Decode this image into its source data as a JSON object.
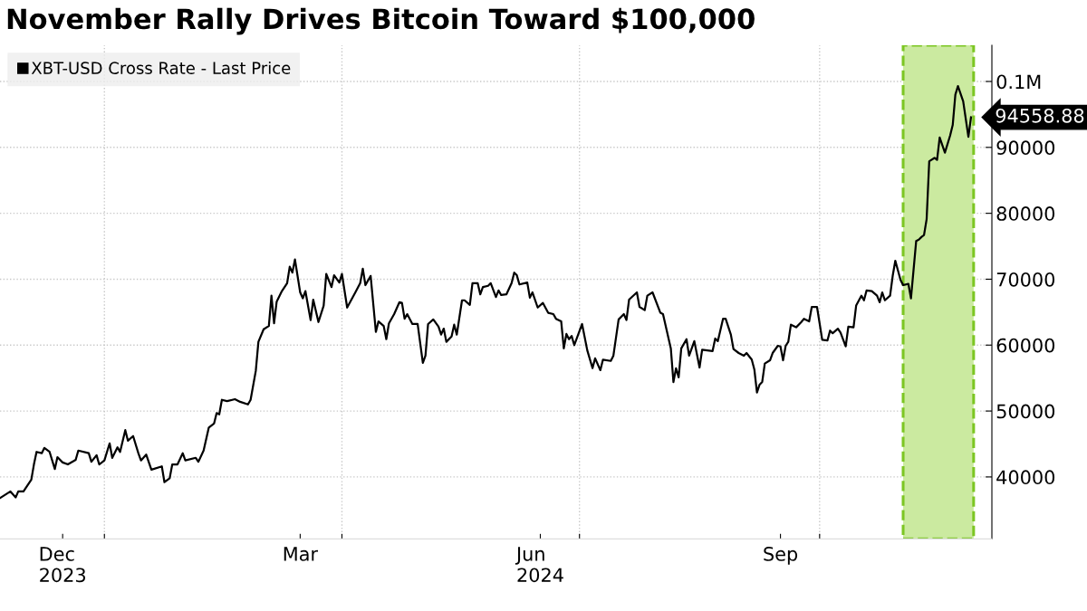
{
  "chart_data": {
    "type": "line",
    "title": "November Rally Drives Bitcoin Toward $100,000",
    "x": [
      "2023-11-22",
      "2023-11-26",
      "2023-11-28",
      "2023-11-29",
      "2023-12-01",
      "2023-12-04",
      "2023-12-05",
      "2023-12-06",
      "2023-12-08",
      "2023-12-09",
      "2023-12-11",
      "2023-12-13",
      "2023-12-14",
      "2023-12-16",
      "2023-12-18",
      "2023-12-21",
      "2023-12-22",
      "2023-12-26",
      "2023-12-27",
      "2023-12-29",
      "2023-12-30",
      "2024-01-01",
      "2024-01-03",
      "2024-01-04",
      "2024-01-06",
      "2024-01-07",
      "2024-01-09",
      "2024-01-10",
      "2024-01-12",
      "2024-01-14",
      "2024-01-15",
      "2024-01-17",
      "2024-01-19",
      "2024-01-23",
      "2024-01-24",
      "2024-01-26",
      "2024-01-27",
      "2024-01-29",
      "2024-01-31",
      "2024-02-01",
      "2024-02-05",
      "2024-02-06",
      "2024-02-08",
      "2024-02-10",
      "2024-02-12",
      "2024-02-13",
      "2024-02-14",
      "2024-02-15",
      "2024-02-17",
      "2024-02-20",
      "2024-02-22",
      "2024-02-25",
      "2024-02-26",
      "2024-02-28",
      "2024-02-29",
      "2024-03-02",
      "2024-03-04",
      "2024-03-05",
      "2024-03-06",
      "2024-03-07",
      "2024-03-09",
      "2024-03-11",
      "2024-03-12",
      "2024-03-13",
      "2024-03-14",
      "2024-03-16",
      "2024-03-17",
      "2024-03-18",
      "2024-03-20",
      "2024-03-21",
      "2024-03-23",
      "2024-03-25",
      "2024-03-26",
      "2024-03-28",
      "2024-03-29",
      "2024-03-31",
      "2024-04-01",
      "2024-04-03",
      "2024-04-06",
      "2024-04-08",
      "2024-04-09",
      "2024-04-10",
      "2024-04-12",
      "2024-04-14",
      "2024-04-15",
      "2024-04-17",
      "2024-04-18",
      "2024-04-19",
      "2024-04-21",
      "2024-04-23",
      "2024-04-24",
      "2024-04-25",
      "2024-04-26",
      "2024-04-28",
      "2024-04-30",
      "2024-05-02",
      "2024-05-03",
      "2024-05-04",
      "2024-05-06",
      "2024-05-08",
      "2024-05-09",
      "2024-05-10",
      "2024-05-11",
      "2024-05-13",
      "2024-05-14",
      "2024-05-15",
      "2024-05-17",
      "2024-05-18",
      "2024-05-20",
      "2024-05-21",
      "2024-05-23",
      "2024-05-24",
      "2024-05-25",
      "2024-05-27",
      "2024-05-28",
      "2024-05-30",
      "2024-05-31",
      "2024-06-01",
      "2024-06-03",
      "2024-06-05",
      "2024-06-06",
      "2024-06-07",
      "2024-06-08",
      "2024-06-11",
      "2024-06-12",
      "2024-06-13",
      "2024-06-15",
      "2024-06-17",
      "2024-06-19",
      "2024-06-21",
      "2024-06-22",
      "2024-06-24",
      "2024-06-25",
      "2024-06-26",
      "2024-06-27",
      "2024-06-28",
      "2024-06-29",
      "2024-07-02",
      "2024-07-04",
      "2024-07-06",
      "2024-07-07",
      "2024-07-09",
      "2024-07-10",
      "2024-07-13",
      "2024-07-14",
      "2024-07-16",
      "2024-07-18",
      "2024-07-19",
      "2024-07-20",
      "2024-07-23",
      "2024-07-24",
      "2024-07-26",
      "2024-07-27",
      "2024-07-29",
      "2024-08-01",
      "2024-08-02",
      "2024-08-05",
      "2024-08-06",
      "2024-08-07",
      "2024-08-08",
      "2024-08-09",
      "2024-08-11",
      "2024-08-12",
      "2024-08-14",
      "2024-08-16",
      "2024-08-17",
      "2024-08-21",
      "2024-08-22",
      "2024-08-23",
      "2024-08-25",
      "2024-08-26",
      "2024-08-28",
      "2024-08-29",
      "2024-08-31",
      "2024-09-02",
      "2024-09-03",
      "2024-09-05",
      "2024-09-06",
      "2024-09-07",
      "2024-09-08",
      "2024-09-09",
      "2024-09-10",
      "2024-09-12",
      "2024-09-13",
      "2024-09-15",
      "2024-09-16",
      "2024-09-17",
      "2024-09-18",
      "2024-09-19",
      "2024-09-20",
      "2024-09-22",
      "2024-09-24",
      "2024-09-25",
      "2024-09-27",
      "2024-09-28",
      "2024-09-30",
      "2024-10-02",
      "2024-10-04",
      "2024-10-05",
      "2024-10-06",
      "2024-10-08",
      "2024-10-09",
      "2024-10-11",
      "2024-10-12",
      "2024-10-14",
      "2024-10-15",
      "2024-10-17",
      "2024-10-18",
      "2024-10-19",
      "2024-10-21",
      "2024-10-23",
      "2024-10-24",
      "2024-10-25",
      "2024-10-26",
      "2024-10-28",
      "2024-10-29",
      "2024-10-30",
      "2024-11-01",
      "2024-11-02",
      "2024-11-04",
      "2024-11-05",
      "2024-11-07",
      "2024-11-08",
      "2024-11-09",
      "2024-11-10",
      "2024-11-11",
      "2024-11-12",
      "2024-11-14",
      "2024-11-15",
      "2024-11-16",
      "2024-11-18",
      "2024-11-20",
      "2024-11-21",
      "2024-11-22",
      "2024-11-23",
      "2024-11-25",
      "2024-11-27",
      "2024-11-28"
    ],
    "series": [
      {
        "name": "XBT-USD Cross Rate - Last Price",
        "color": "#000000",
        "values": [
          36800,
          37800,
          36900,
          37800,
          37800,
          39600,
          41900,
          43800,
          43600,
          44400,
          43800,
          41200,
          43000,
          42200,
          41900,
          42600,
          44000,
          43600,
          42300,
          43300,
          41900,
          42500,
          45100,
          42900,
          44500,
          43800,
          47100,
          45500,
          46200,
          43600,
          42500,
          43400,
          41100,
          41600,
          39200,
          39800,
          41900,
          41900,
          43600,
          42500,
          42900,
          42300,
          44000,
          47500,
          48100,
          49700,
          49500,
          51700,
          51500,
          51800,
          51400,
          51000,
          51700,
          56100,
          60500,
          62400,
          62900,
          67500,
          63300,
          66600,
          68200,
          69400,
          71900,
          71000,
          73000,
          68000,
          67100,
          68200,
          63800,
          66900,
          63500,
          66000,
          70800,
          68800,
          70600,
          69500,
          70800,
          65700,
          67900,
          69400,
          71600,
          69100,
          70500,
          62000,
          63600,
          62900,
          60900,
          63300,
          64700,
          66500,
          66400,
          64000,
          64700,
          63200,
          63200,
          57300,
          58400,
          63200,
          63900,
          62800,
          61600,
          62500,
          60500,
          61300,
          63100,
          61600,
          66800,
          66800,
          66100,
          69400,
          69400,
          67700,
          68800,
          69000,
          69400,
          67300,
          68300,
          67600,
          67700,
          69400,
          71000,
          70600,
          69200,
          69500,
          67200,
          68000,
          65700,
          66400,
          64900,
          64700,
          64000,
          63600,
          59500,
          61700,
          60900,
          61400,
          60000,
          63200,
          59200,
          56500,
          58000,
          56200,
          57800,
          57600,
          58400,
          63900,
          64700,
          63800,
          66900,
          68000,
          65800,
          65300,
          67500,
          68000,
          64900,
          64700,
          59500,
          54400,
          56500,
          55100,
          59500,
          60900,
          58400,
          60600,
          56600,
          59300,
          59100,
          61000,
          60600,
          64000,
          64000,
          61600,
          59400,
          58800,
          58400,
          58800,
          57800,
          56300,
          52800,
          54000,
          54400,
          57200,
          57700,
          58800,
          59900,
          59800,
          57700,
          59900,
          60500,
          63100,
          62700,
          63500,
          64000,
          63600,
          65800,
          65800,
          60800,
          60700,
          62200,
          61800,
          62500,
          61900,
          59800,
          62800,
          62700,
          66000,
          67500,
          66800,
          68300,
          68200,
          67500,
          66500,
          68000,
          66800,
          67500,
          70500,
          72800,
          69900,
          69100,
          69300,
          67100,
          75800,
          76000,
          76400,
          76700,
          79100,
          87900,
          88400,
          88100,
          91500,
          89200,
          91800,
          93400,
          98000,
          99300,
          97000,
          91600,
          94558.88
        ]
      }
    ],
    "xlim": [
      "2023-11-22",
      "2024-12-06"
    ],
    "xticks": [
      {
        "value": "2023-12-16",
        "label": "Dec\n2023"
      },
      {
        "value": "2024-01-01",
        "label": null
      },
      {
        "value": "2024-03-16",
        "label": "Mar"
      },
      {
        "value": "2024-04-01",
        "label": null
      },
      {
        "value": "2024-06-16",
        "label": "Jun\n2024"
      },
      {
        "value": "2024-07-01",
        "label": null
      },
      {
        "value": "2024-09-16",
        "label": "Sep"
      },
      {
        "value": "2024-10-01",
        "label": null
      }
    ],
    "ylim": [
      30600,
      105500
    ],
    "yticks": [
      40000,
      50000,
      60000,
      70000,
      80000,
      90000,
      {
        "value": 100000,
        "label": "0.1M"
      }
    ],
    "grid": true,
    "legend": "top left",
    "line_style": "solid",
    "marker": "none",
    "bands": [
      {
        "axis": "x",
        "from": "2024-11-02",
        "to": "2024-11-29",
        "color": "#cbeaa0"
      }
    ],
    "annotations": [
      {
        "text": "94558.88",
        "x": "2024-11-28",
        "y": 94558.88
      }
    ]
  }
}
